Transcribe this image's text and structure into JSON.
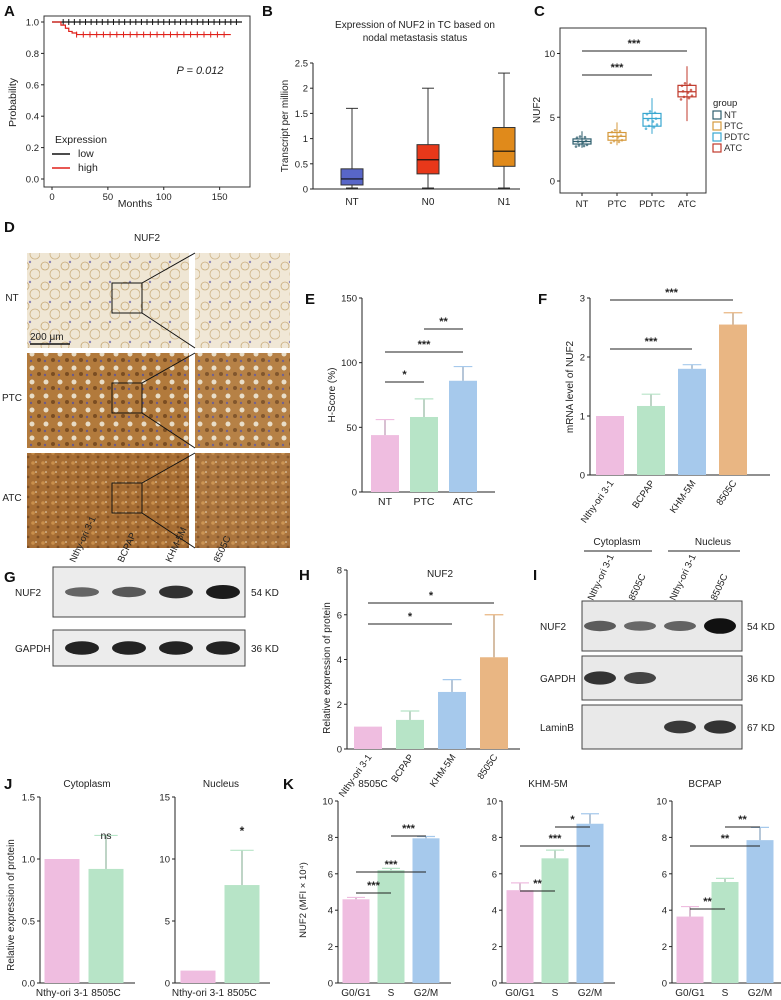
{
  "panels": {
    "A": {
      "letter": "A",
      "ylabel": "Probability",
      "xlabel": "Months",
      "pvalue": "P = 0.012",
      "legend_title": "Expression",
      "legend": [
        {
          "label": "low",
          "color": "#111111"
        },
        {
          "label": "high",
          "color": "#e0201a"
        }
      ],
      "xticks": [
        "0",
        "50",
        "100",
        "150"
      ],
      "yticks": [
        "0.0",
        "0.2",
        "0.4",
        "0.6",
        "0.8",
        "1.0"
      ]
    },
    "B": {
      "letter": "B",
      "title_line1": "Expression of NUF2 in TC based on",
      "title_line2": "nodal metastasis status",
      "ylabel": "Transcript per million",
      "yticks": [
        "0",
        "0.5",
        "1",
        "1.5",
        "2",
        "2.5"
      ]
    },
    "C": {
      "letter": "C",
      "ylabel": "NUF2",
      "legend_title": "group",
      "sig": [
        "***",
        "***"
      ],
      "yticks": [
        "0",
        "5",
        "10"
      ]
    },
    "D": {
      "letter": "D",
      "title": "NUF2",
      "rows": [
        "NT",
        "PTC",
        "ATC"
      ],
      "scale": "200 μm"
    },
    "E": {
      "letter": "E",
      "ylabel": "H-Score (%)",
      "sig": [
        "*",
        "***",
        "**"
      ],
      "yticks": [
        "0",
        "50",
        "100",
        "150"
      ]
    },
    "F": {
      "letter": "F",
      "ylabel": "mRNA level of NUF2",
      "sig": [
        "***",
        "***"
      ],
      "yticks": [
        "0",
        "1",
        "2",
        "3"
      ]
    },
    "G": {
      "letter": "G",
      "lanes": [
        "Nthy-ori 3-1",
        "BCPAP",
        "KHM-5M",
        "8505C"
      ],
      "blots": [
        {
          "name": "NUF2",
          "kd": "54 KD"
        },
        {
          "name": "GAPDH",
          "kd": "36 KD"
        }
      ]
    },
    "H": {
      "letter": "H",
      "title": "NUF2",
      "ylabel": "Relative expression of protein",
      "sig": [
        "*",
        "*"
      ],
      "yticks": [
        "0",
        "2",
        "4",
        "6",
        "8"
      ]
    },
    "I": {
      "letter": "I",
      "groups": [
        "Cytoplasm",
        "Nucleus"
      ],
      "lanes": [
        "Nthy-ori 3-1",
        "8505C",
        "Nthy-ori 3-1",
        "8505C"
      ],
      "blots": [
        {
          "name": "NUF2",
          "kd": "54 KD"
        },
        {
          "name": "GAPDH",
          "kd": "36 KD"
        },
        {
          "name": "LaminB",
          "kd": "67 KD"
        }
      ]
    },
    "J": {
      "letter": "J",
      "ylabel": "Relative expression of protein",
      "sub1": {
        "title": "Cytoplasm",
        "sig": "ns",
        "yticks": [
          "0.0",
          "0.5",
          "1.0",
          "1.5"
        ]
      },
      "sub2": {
        "title": "Nucleus",
        "sig": "*",
        "yticks": [
          "0",
          "5",
          "10",
          "15"
        ]
      }
    },
    "K": {
      "letter": "K",
      "ylabel": "NUF2 (MFI × 10⁴)",
      "sub1": {
        "title": "8505C",
        "sig": [
          "***",
          "***",
          "***"
        ],
        "yticks": [
          "0",
          "2",
          "4",
          "6",
          "8",
          "10"
        ]
      },
      "sub2": {
        "title": "KHM-5M",
        "sig": [
          "**",
          "***",
          "*"
        ],
        "yticks": [
          "0",
          "2",
          "4",
          "6",
          "8",
          "10"
        ]
      },
      "sub3": {
        "title": "BCPAP",
        "sig": [
          "**",
          "**",
          "**"
        ],
        "yticks": [
          "0",
          "2",
          "4",
          "6",
          "8",
          "10"
        ]
      }
    }
  },
  "colors": {
    "pink": "#efbde0",
    "green": "#b7e4c7",
    "blue": "#a6c9ec",
    "orange": "#e9b683",
    "nt_box": "#2f5f6e",
    "ptc_box": "#d59a3d",
    "pdtc_box": "#38a7d0",
    "atc_box": "#c0392b",
    "boxB_NT": "#5866c8",
    "boxB_N0": "#e8381a",
    "boxB_N1": "#e08a1b"
  },
  "chart_data": [
    {
      "panel": "A",
      "type": "line",
      "title": "",
      "xlabel": "Months",
      "ylabel": "Probability",
      "xlim": [
        0,
        170
      ],
      "ylim": [
        0,
        1.0
      ],
      "series": [
        {
          "name": "low",
          "x": [
            0,
            10,
            60,
            120,
            170
          ],
          "y": [
            1.0,
            1.0,
            1.0,
            1.0,
            1.0
          ]
        },
        {
          "name": "high",
          "x": [
            0,
            8,
            12,
            15,
            18,
            22,
            160
          ],
          "y": [
            1.0,
            0.98,
            0.96,
            0.94,
            0.93,
            0.92,
            0.92
          ]
        }
      ],
      "annotations": [
        "P = 0.012"
      ]
    },
    {
      "panel": "B",
      "type": "box",
      "title": "Expression of NUF2 in TC based on nodal metastasis status",
      "ylabel": "Transcript per million",
      "ylim": [
        0,
        2.5
      ],
      "categories": [
        "NT",
        "N0",
        "N1"
      ],
      "boxes": [
        {
          "min": 0.02,
          "q1": 0.08,
          "median": 0.2,
          "q3": 0.4,
          "max": 1.6
        },
        {
          "min": 0.02,
          "q1": 0.3,
          "median": 0.58,
          "q3": 0.88,
          "max": 2.0
        },
        {
          "min": 0.02,
          "q1": 0.45,
          "median": 0.75,
          "q3": 1.22,
          "max": 2.3
        }
      ]
    },
    {
      "panel": "C",
      "type": "box",
      "ylabel": "NUF2",
      "ylim": [
        0,
        12
      ],
      "categories": [
        "NT",
        "PTC",
        "PDTC",
        "ATC"
      ],
      "legend_title": "group",
      "boxes": [
        {
          "min": 2.6,
          "q1": 2.9,
          "median": 3.1,
          "q3": 3.3,
          "max": 3.9
        },
        {
          "min": 2.8,
          "q1": 3.2,
          "median": 3.5,
          "q3": 3.8,
          "max": 4.6
        },
        {
          "min": 3.7,
          "q1": 4.3,
          "median": 4.9,
          "q3": 5.3,
          "max": 6.5
        },
        {
          "min": 4.7,
          "q1": 6.6,
          "median": 7.0,
          "q3": 7.5,
          "max": 9.0
        }
      ],
      "significance": [
        {
          "pair": [
            "NT",
            "ATC"
          ],
          "label": "***"
        },
        {
          "pair": [
            "NT",
            "PDTC"
          ],
          "label": "***"
        }
      ]
    },
    {
      "panel": "E",
      "type": "bar",
      "ylabel": "H-Score (%)",
      "ylim": [
        0,
        150
      ],
      "categories": [
        "NT",
        "PTC",
        "ATC"
      ],
      "values": [
        44,
        58,
        86
      ],
      "errors": [
        12,
        14,
        11
      ],
      "significance": [
        {
          "pair": [
            "NT",
            "PTC"
          ],
          "label": "*"
        },
        {
          "pair": [
            "NT",
            "ATC"
          ],
          "label": "***"
        },
        {
          "pair": [
            "PTC",
            "ATC"
          ],
          "label": "**"
        }
      ]
    },
    {
      "panel": "F",
      "type": "bar",
      "ylabel": "mRNA level of NUF2",
      "ylim": [
        0,
        3
      ],
      "categories": [
        "Nthy-ori 3-1",
        "BCPAP",
        "KHM-5M",
        "8505C"
      ],
      "values": [
        1.0,
        1.17,
        1.8,
        2.55
      ],
      "errors": [
        0,
        0.2,
        0.07,
        0.2
      ],
      "significance": [
        {
          "pair": [
            "Nthy-ori 3-1",
            "KHM-5M"
          ],
          "label": "***"
        },
        {
          "pair": [
            "Nthy-ori 3-1",
            "8505C"
          ],
          "label": "***"
        }
      ]
    },
    {
      "panel": "H",
      "type": "bar",
      "title": "NUF2",
      "ylabel": "Relative expression of protein",
      "ylim": [
        0,
        8
      ],
      "categories": [
        "Nthy-ori 3-1",
        "BCPAP",
        "KHM-5M",
        "8505C"
      ],
      "values": [
        1.0,
        1.3,
        2.55,
        4.1
      ],
      "errors": [
        0,
        0.4,
        0.55,
        1.9
      ],
      "significance": [
        {
          "pair": [
            "Nthy-ori 3-1",
            "KHM-5M"
          ],
          "label": "*"
        },
        {
          "pair": [
            "Nthy-ori 3-1",
            "8505C"
          ],
          "label": "*"
        }
      ]
    },
    {
      "panel": "J-Cytoplasm",
      "type": "bar",
      "title": "Cytoplasm",
      "ylabel": "Relative expression of protein",
      "ylim": [
        0,
        1.5
      ],
      "categories": [
        "Nthy-ori 3-1",
        "8505C"
      ],
      "values": [
        1.0,
        0.92
      ],
      "errors": [
        0,
        0.27
      ],
      "significance": [
        {
          "pair": [
            "8505C"
          ],
          "label": "ns"
        }
      ]
    },
    {
      "panel": "J-Nucleus",
      "type": "bar",
      "title": "Nucleus",
      "ylim": [
        0,
        15
      ],
      "categories": [
        "Nthy-ori 3-1",
        "8505C"
      ],
      "values": [
        1.0,
        7.9
      ],
      "errors": [
        0,
        2.8
      ],
      "significance": [
        {
          "pair": [
            "8505C"
          ],
          "label": "*"
        }
      ]
    },
    {
      "panel": "K-8505C",
      "type": "bar",
      "title": "8505C",
      "ylabel": "NUF2 (MFI × 10⁴)",
      "ylim": [
        0,
        10
      ],
      "categories": [
        "G0/G1",
        "S",
        "G2/M"
      ],
      "values": [
        4.6,
        6.2,
        7.95
      ],
      "errors": [
        0.1,
        0.1,
        0.1
      ],
      "significance": [
        {
          "pair": [
            "G0/G1",
            "S"
          ],
          "label": "***"
        },
        {
          "pair": [
            "G0/G1",
            "G2/M"
          ],
          "label": "***"
        },
        {
          "pair": [
            "S",
            "G2/M"
          ],
          "label": "***"
        }
      ]
    },
    {
      "panel": "K-KHM-5M",
      "type": "bar",
      "title": "KHM-5M",
      "ylim": [
        0,
        10
      ],
      "categories": [
        "G0/G1",
        "S",
        "G2/M"
      ],
      "values": [
        5.1,
        6.85,
        8.75
      ],
      "errors": [
        0.4,
        0.45,
        0.55
      ],
      "significance": [
        {
          "pair": [
            "G0/G1",
            "S"
          ],
          "label": "**"
        },
        {
          "pair": [
            "G0/G1",
            "G2/M"
          ],
          "label": "***"
        },
        {
          "pair": [
            "S",
            "G2/M"
          ],
          "label": "*"
        }
      ]
    },
    {
      "panel": "K-BCPAP",
      "type": "bar",
      "title": "BCPAP",
      "ylim": [
        0,
        10
      ],
      "categories": [
        "G0/G1",
        "S",
        "G2/M"
      ],
      "values": [
        3.65,
        5.55,
        7.85
      ],
      "errors": [
        0.55,
        0.2,
        0.7
      ],
      "significance": [
        {
          "pair": [
            "G0/G1",
            "S"
          ],
          "label": "**"
        },
        {
          "pair": [
            "G0/G1",
            "G2/M"
          ],
          "label": "**"
        },
        {
          "pair": [
            "S",
            "G2/M"
          ],
          "label": "**"
        }
      ]
    }
  ]
}
